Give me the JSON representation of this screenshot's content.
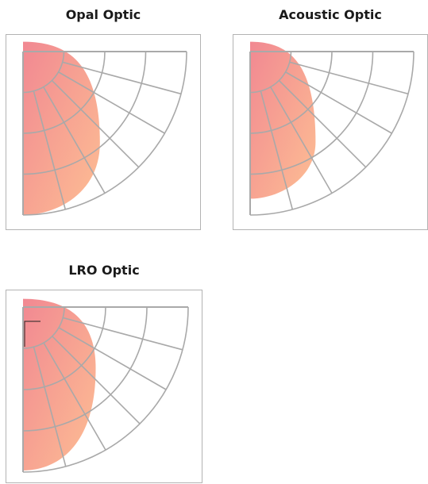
{
  "diagrams": [
    {
      "id": "opal",
      "title": "Opal Optic",
      "distribution": {
        "reach_down": 1.0,
        "reach_side": 0.47,
        "reach_up": 0.06,
        "bulge_angle": 34
      }
    },
    {
      "id": "acoustic",
      "title": "Acoustic Optic",
      "distribution": {
        "reach_down": 0.9,
        "reach_side": 0.4,
        "reach_up": 0.06,
        "bulge_angle": 38
      }
    },
    {
      "id": "lro",
      "title": "LRO Optic",
      "distribution": {
        "reach_down": 0.99,
        "reach_side": 0.44,
        "reach_up": 0.05,
        "bulge_angle": 22
      }
    }
  ],
  "style": {
    "grid_color": "#a9a9a9",
    "gradient_start": "#f07e88",
    "gradient_end": "#fdb98a"
  }
}
